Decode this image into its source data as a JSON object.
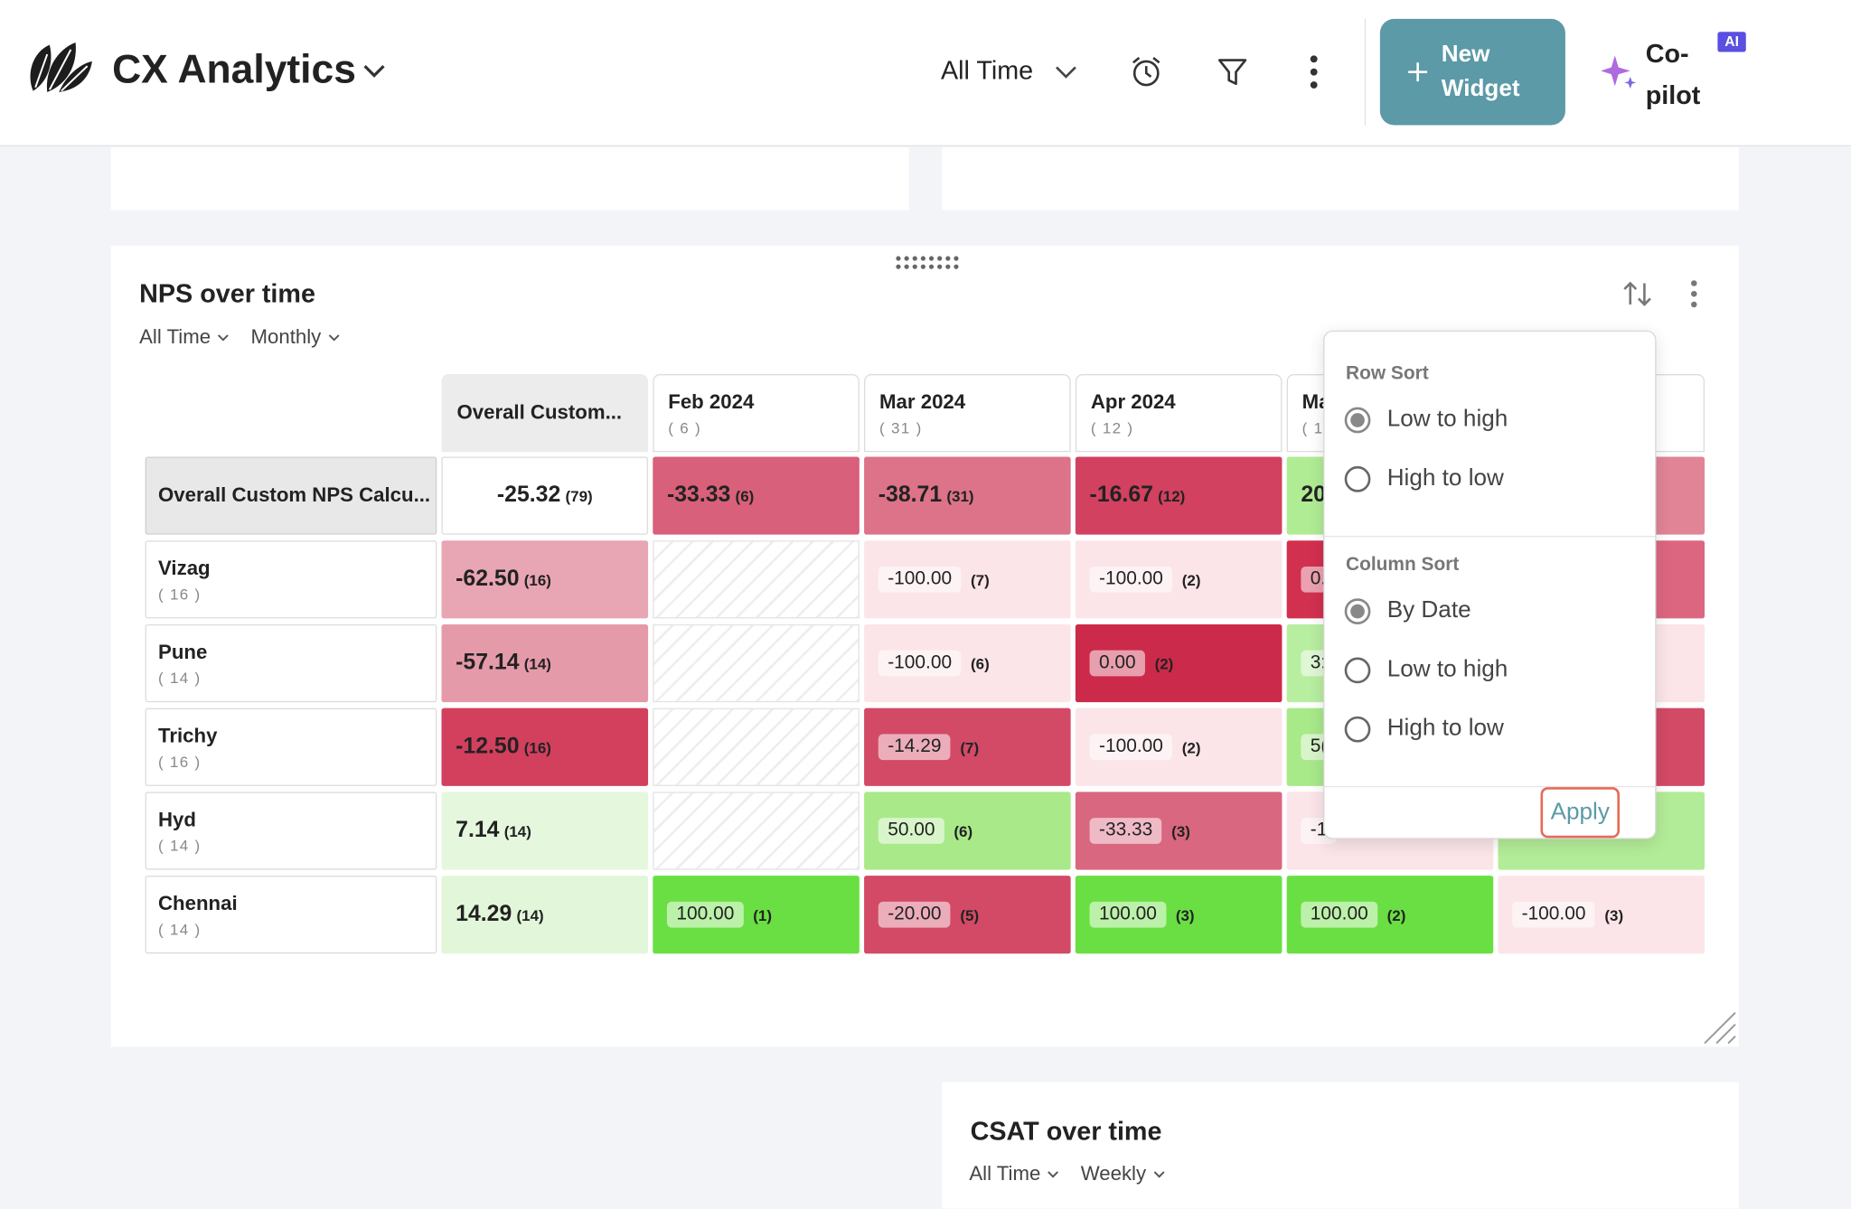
{
  "header": {
    "title": "CX Analytics",
    "time_filter": "All Time",
    "new_widget": "New Widget",
    "copilot": "Co-pilot",
    "ai_badge": "AI"
  },
  "widget": {
    "title": "NPS over time",
    "filters": [
      "All Time",
      "Monthly"
    ],
    "table": {
      "columns": [
        {
          "label": "Overall Custom...",
          "count": null
        },
        {
          "label": "Feb 2024",
          "count": "( 6 )"
        },
        {
          "label": "Mar 2024",
          "count": "( 31 )"
        },
        {
          "label": "Apr 2024",
          "count": "( 12 )"
        },
        {
          "label": "Ma",
          "count": "( 1"
        }
      ],
      "rows": [
        {
          "label": "Overall Custom NPS Calcu...",
          "count": null,
          "cells": [
            {
              "value": "-25.32",
              "count": "(79)",
              "color": "#ffffff"
            },
            {
              "value": "-33.33",
              "count": "(6)",
              "color": "#d9607a"
            },
            {
              "value": "-38.71",
              "count": "(31)",
              "color": "#dc7388"
            },
            {
              "value": "-16.67",
              "count": "(12)",
              "color": "#d2415f"
            },
            {
              "value": "20",
              "count": null,
              "color": "#b0ec94"
            },
            {
              "value": null,
              "count": null,
              "color": "#e08496"
            }
          ]
        },
        {
          "label": "Vizag",
          "count": "( 16 )",
          "cells": [
            {
              "value": "-62.50",
              "count": "(16)",
              "color": "#e8a5b3"
            },
            null,
            {
              "value": "-100.00",
              "count": "(7)",
              "color": "#fbe5e9"
            },
            {
              "value": "-100.00",
              "count": "(2)",
              "color": "#fbe5e9"
            },
            {
              "value": "0.",
              "count": null,
              "color": "#d2304f"
            },
            {
              "value": null,
              "count": null,
              "color": "#dc6680"
            }
          ]
        },
        {
          "label": "Pune",
          "count": "( 14 )",
          "cells": [
            {
              "value": "-57.14",
              "count": "(14)",
              "color": "#e59aaa"
            },
            null,
            {
              "value": "-100.00",
              "count": "(6)",
              "color": "#fbe5e9"
            },
            {
              "value": "0.00",
              "count": "(2)",
              "color": "#cc2a4a"
            },
            {
              "value": "3:",
              "count": null,
              "color": "#b8eea0"
            },
            {
              "value": null,
              "count": null,
              "color": "#fbe5e9"
            }
          ]
        },
        {
          "label": "Trichy",
          "count": "( 16 )",
          "cells": [
            {
              "value": "-12.50",
              "count": "(16)",
              "color": "#d2405e"
            },
            null,
            {
              "value": "-14.29",
              "count": "(7)",
              "color": "#d24a66"
            },
            {
              "value": "-100.00",
              "count": "(2)",
              "color": "#fbe5e9"
            },
            {
              "value": "5(",
              "count": null,
              "color": "#a8e98a"
            },
            {
              "value": null,
              "count": null,
              "color": "#d24a66"
            }
          ]
        },
        {
          "label": "Hyd",
          "count": "( 14 )",
          "cells": [
            {
              "value": "7.14",
              "count": "(14)",
              "color": "#e5f8dd"
            },
            null,
            {
              "value": "50.00",
              "count": "(6)",
              "color": "#a9e98a"
            },
            {
              "value": "-33.33",
              "count": "(3)",
              "color": "#d9677f"
            },
            {
              "value": "-1",
              "count": null,
              "color": "#fbe5e9"
            },
            {
              "value": null,
              "count": null,
              "color": "#b3ec98"
            }
          ]
        },
        {
          "label": "Chennai",
          "count": "( 14 )",
          "cells": [
            {
              "value": "14.29",
              "count": "(14)",
              "color": "#e2f7d9"
            },
            {
              "value": "100.00",
              "count": "(1)",
              "color": "#6adf43"
            },
            {
              "value": "-20.00",
              "count": "(5)",
              "color": "#d24a66"
            },
            {
              "value": "100.00",
              "count": "(3)",
              "color": "#6adf43"
            },
            {
              "value": "100.00",
              "count": "(2)",
              "color": "#6adf43"
            },
            {
              "value": "-100.00",
              "count": "(3)",
              "color": "#fbe5e9"
            }
          ]
        }
      ]
    },
    "sort_menu": {
      "row_sort": {
        "title": "Row Sort",
        "options": [
          "Low to high",
          "High to low"
        ],
        "selected": 0
      },
      "column_sort": {
        "title": "Column Sort",
        "options": [
          "By Date",
          "Low to high",
          "High to low"
        ],
        "selected": 0
      },
      "apply": "Apply"
    }
  },
  "widget2": {
    "title": "CSAT over time",
    "filters": [
      "All Time",
      "Weekly"
    ]
  }
}
